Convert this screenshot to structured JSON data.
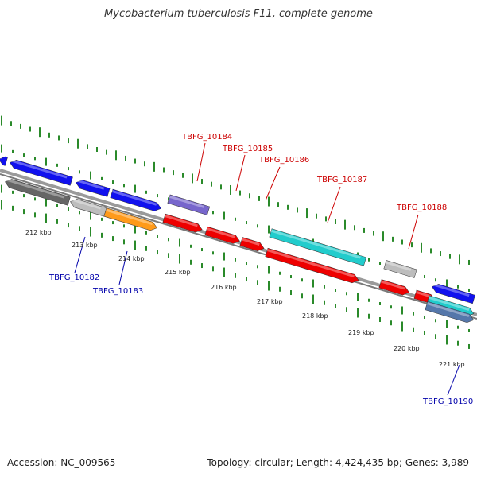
{
  "title": "Mycobacterium tuberculosis F11, complete genome",
  "accession": "Accession: NC_009565",
  "summary": "Topology: circular; Length: 4,424,435 bp; Genes: 3,989",
  "colors": {
    "backbone": "#8c8c8c",
    "tick": "#2a8a2a",
    "label_top": "#cc0000",
    "label_bottom": "#0000aa",
    "blue": "#1111ee",
    "red": "#ee0000",
    "cyan": "#22cccc",
    "gray_dark": "#666666",
    "gray_light": "#bdbdbd",
    "orange": "#ff9a1a",
    "purple": "#7766cc",
    "steel": "#5577aa"
  },
  "scale_labels": [
    "212 kbp",
    "213 kbp",
    "214 kbp",
    "215 kbp",
    "216 kbp",
    "217 kbp",
    "218 kbp",
    "219 kbp",
    "220 kbp",
    "221 kbp"
  ],
  "gene_labels_top": [
    "TBFG_10184",
    "TBFG_10185",
    "TBFG_10186",
    "TBFG_10187",
    "TBFG_10188"
  ],
  "gene_labels_bottom": [
    "TBFG_10182",
    "TBFG_10183",
    "TBFG_10190"
  ]
}
